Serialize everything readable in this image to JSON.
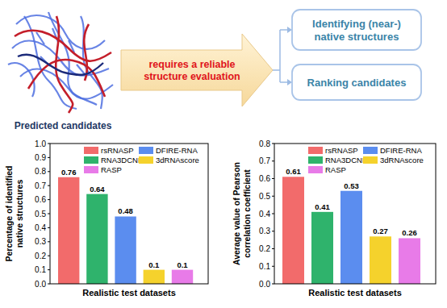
{
  "diagram": {
    "image_label": "Predicted candidates",
    "arrow_text": [
      "requires a reliable",
      "structure evaluation"
    ],
    "boxes": [
      [
        "Identifying (near-)",
        "native structures"
      ],
      [
        "Ranking candidates"
      ]
    ]
  },
  "chart_data": [
    {
      "type": "bar",
      "categories": [
        "Realistic test datasets"
      ],
      "ylabel": "Percentage of identified native structures",
      "ylim": [
        0,
        1
      ],
      "yticks": [
        {
          "value": 0,
          "label": "0.0"
        },
        0.1,
        0.2,
        0.3,
        0.4,
        0.5,
        0.6,
        0.7,
        0.8,
        0.9,
        {
          "value": 1,
          "label": "1.0"
        }
      ],
      "grid": false,
      "legend": "top",
      "data_labels": true,
      "series": [
        {
          "name": "rsRNASP",
          "color": "#f26b6b",
          "values": [
            0.76
          ]
        },
        {
          "name": "RNA3DCNN",
          "color": "#2fb36c",
          "values": [
            0.64
          ]
        },
        {
          "name": "DFIRE-RNA",
          "color": "#5b8def",
          "values": [
            0.48
          ]
        },
        {
          "name": "3dRNAscore",
          "color": "#f5d22c",
          "values": [
            0.1
          ]
        },
        {
          "name": "RASP",
          "color": "#e87be8",
          "values": [
            0.1
          ]
        }
      ]
    },
    {
      "type": "bar",
      "categories": [
        "Realistic test datasets"
      ],
      "ylabel": "Average value of Pearson correlation coefficient",
      "ylim": [
        0,
        0.8
      ],
      "yticks": [
        {
          "value": 0,
          "label": "0.0"
        },
        0.1,
        0.2,
        0.3,
        0.4,
        0.5,
        0.6,
        0.7,
        0.8
      ],
      "grid": false,
      "legend": "top",
      "data_labels": true,
      "series": [
        {
          "name": "rsRNASP",
          "color": "#f26b6b",
          "values": [
            0.61
          ]
        },
        {
          "name": "RNA3DCNN",
          "color": "#2fb36c",
          "values": [
            0.41
          ]
        },
        {
          "name": "DFIRE-RNA",
          "color": "#5b8def",
          "values": [
            0.53
          ]
        },
        {
          "name": "3dRNAscore",
          "color": "#f5d22c",
          "values": [
            0.27
          ]
        },
        {
          "name": "RASP",
          "color": "#e87be8",
          "values": [
            0.26
          ]
        }
      ]
    }
  ]
}
